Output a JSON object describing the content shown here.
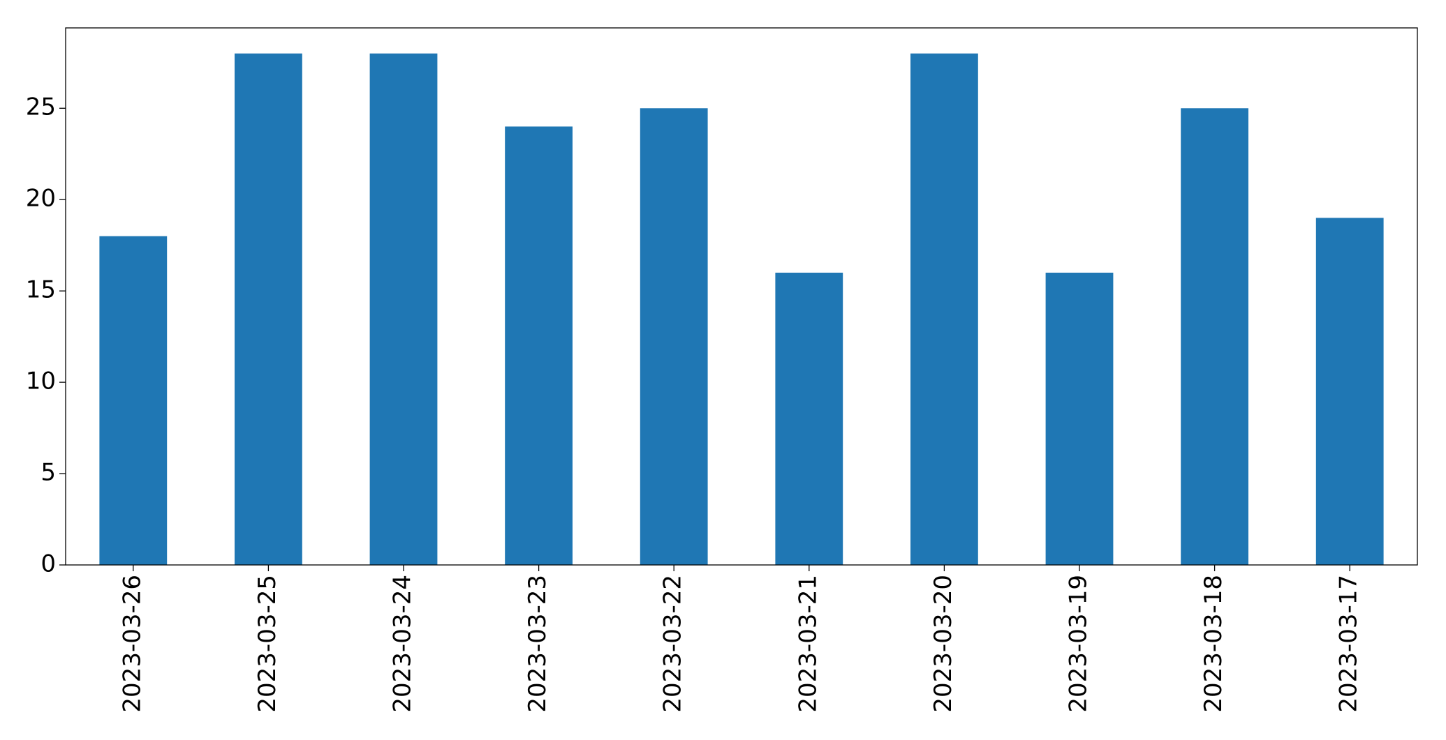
{
  "chart_data": {
    "type": "bar",
    "categories": [
      "2023-03-26",
      "2023-03-25",
      "2023-03-24",
      "2023-03-23",
      "2023-03-22",
      "2023-03-21",
      "2023-03-20",
      "2023-03-19",
      "2023-03-18",
      "2023-03-17"
    ],
    "values": [
      18,
      28,
      28,
      24,
      25,
      16,
      28,
      16,
      25,
      19
    ],
    "color": "#1f77b4",
    "ylim": [
      0,
      29.4
    ],
    "yticks": [
      0,
      5,
      10,
      15,
      20,
      25
    ],
    "grid": false
  }
}
